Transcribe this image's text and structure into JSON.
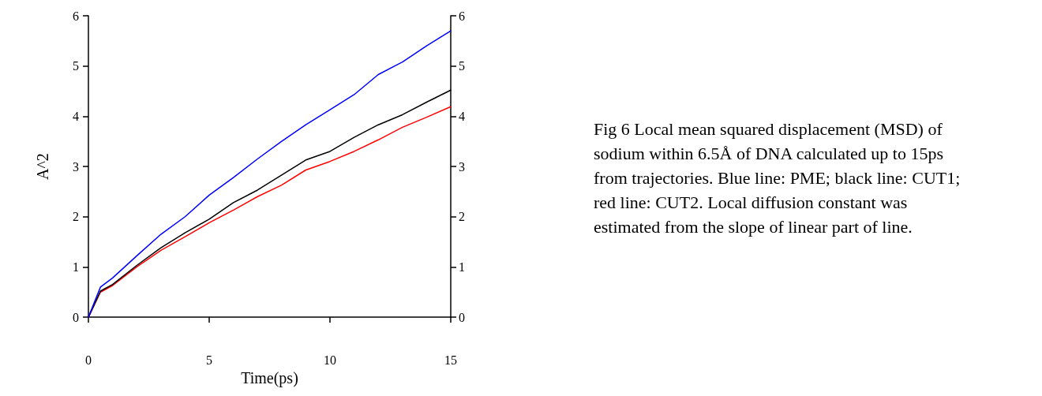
{
  "chart_data": {
    "type": "line",
    "xlabel": "Time(ps)",
    "ylabel": "A^2",
    "x": [
      0,
      0.5,
      1,
      2,
      3,
      4,
      5,
      6,
      7,
      8,
      9,
      10,
      11,
      12,
      13,
      14,
      15
    ],
    "series": [
      {
        "color": "#0000ff",
        "values": [
          0,
          0.6,
          0.78,
          1.22,
          1.65,
          2.0,
          2.43,
          2.78,
          3.15,
          3.5,
          3.83,
          4.13,
          4.43,
          4.83,
          5.08,
          5.4,
          5.7
        ]
      },
      {
        "color": "#000000",
        "values": [
          0,
          0.52,
          0.65,
          1.03,
          1.38,
          1.68,
          1.95,
          2.28,
          2.53,
          2.83,
          3.13,
          3.3,
          3.58,
          3.83,
          4.03,
          4.28,
          4.52
        ]
      },
      {
        "color": "#ff0000",
        "values": [
          0,
          0.5,
          0.63,
          1.0,
          1.33,
          1.6,
          1.88,
          2.13,
          2.4,
          2.63,
          2.93,
          3.1,
          3.3,
          3.53,
          3.78,
          3.98,
          4.19
        ]
      }
    ],
    "xlim": [
      0,
      15
    ],
    "xticks": [
      0,
      5,
      10,
      15
    ],
    "ylim": [
      0,
      6
    ],
    "yticks": [
      0,
      1,
      2,
      3,
      4,
      5,
      6
    ],
    "y2lim": [
      0,
      6
    ],
    "y2ticks": [
      0,
      1,
      2,
      3,
      4,
      5,
      6
    ],
    "grid": false,
    "marker": "none",
    "line_style": "solid",
    "annotations": [
      "Fig 6 Local mean squared displacement (MSD) of sodium within 6.5Å of DNA calculated up to 15ps from trajectories. Blue line: PME; black line: CUT1; red line: CUT2. Local diffusion constant was estimated from the slope of linear part of line."
    ]
  }
}
